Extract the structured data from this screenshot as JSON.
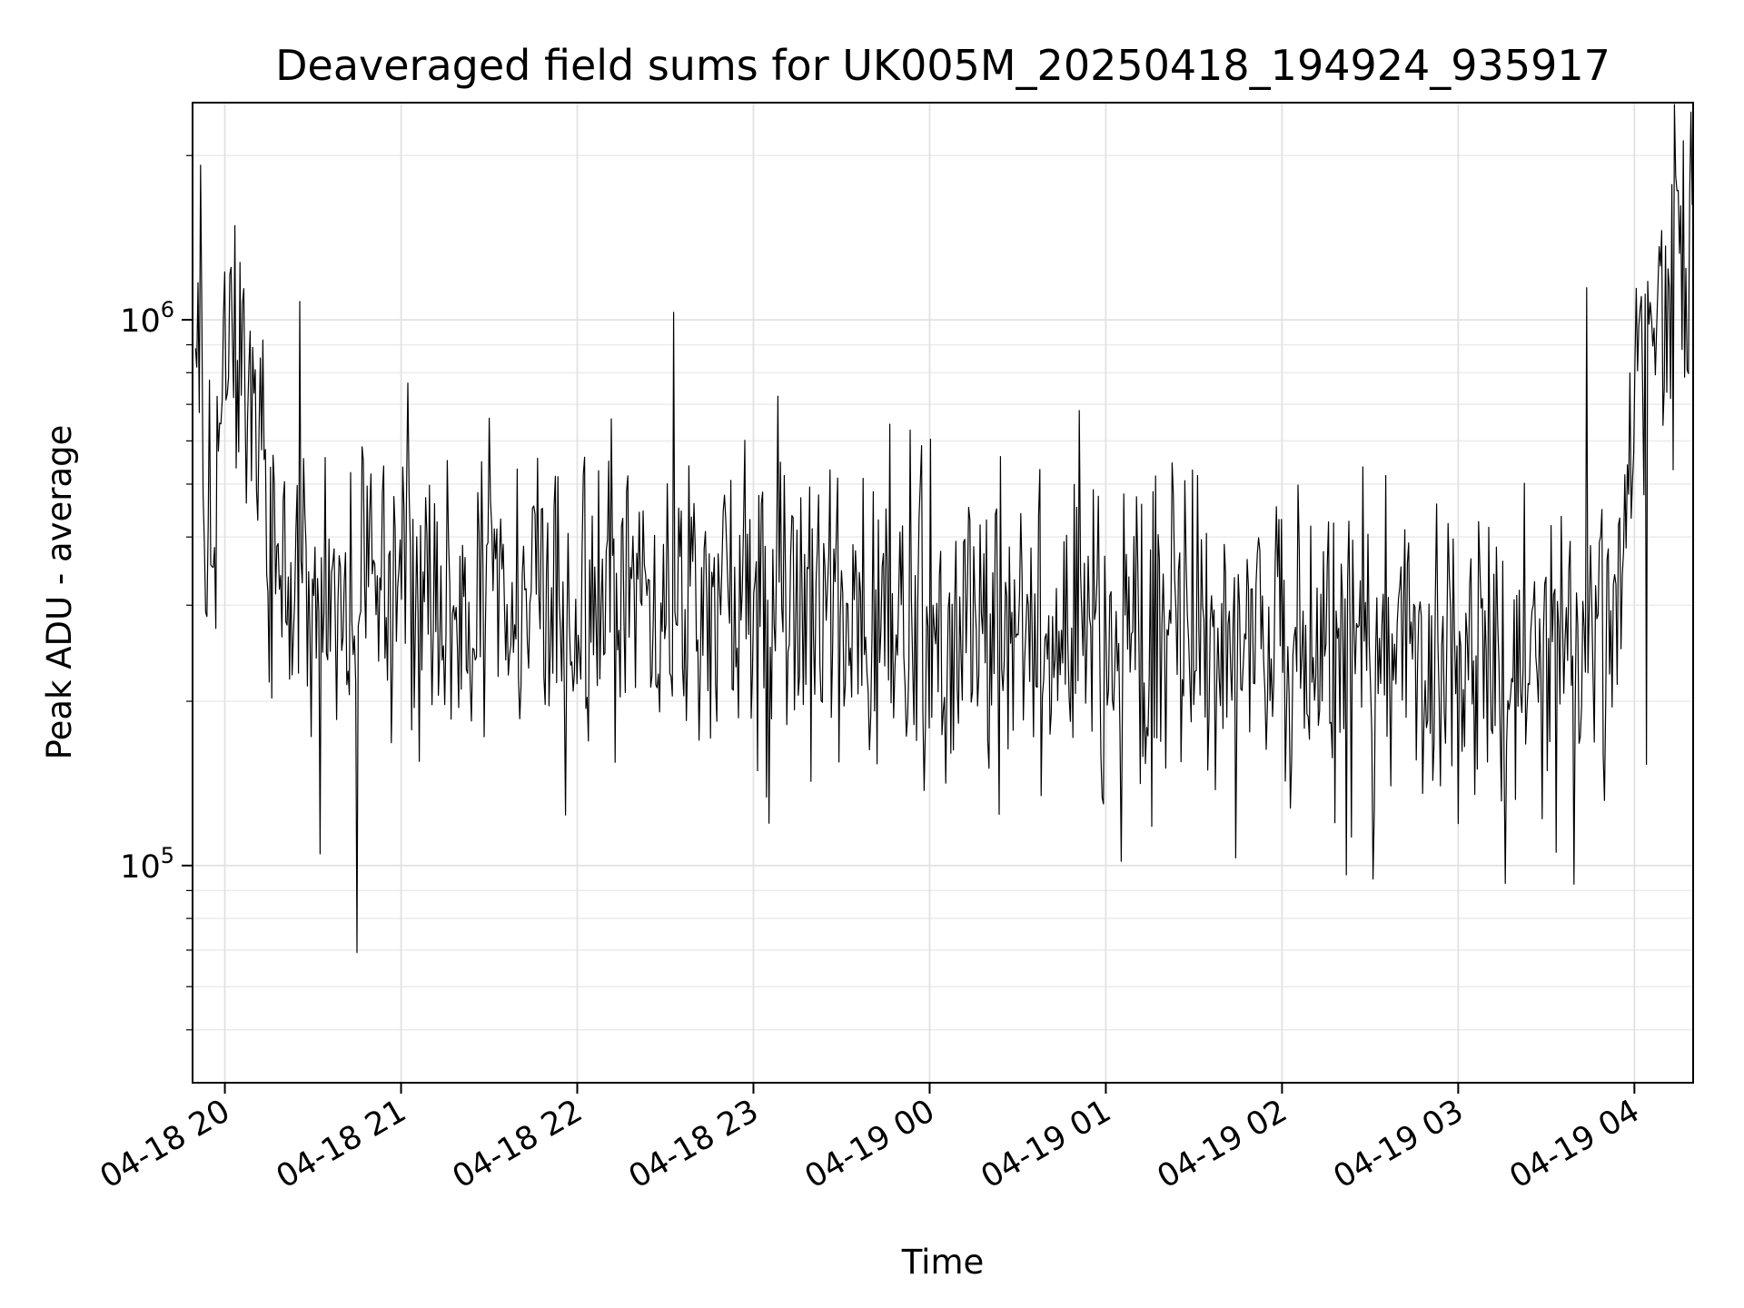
{
  "chart_data": {
    "type": "line",
    "title": "Deaveraged field sums for UK005M_20250418_194924_935917",
    "xlabel": "Time",
    "ylabel": "Peak ADU - average",
    "xlim": [
      "2025-04-18 19:49",
      "2025-04-19 04:20"
    ],
    "ylim": [
      40000,
      2500000
    ],
    "yscale": "log",
    "grid": true,
    "line_color": "#000000",
    "x_ticks": [
      {
        "label": "04-18 20",
        "value": "2025-04-18 20:00"
      },
      {
        "label": "04-18 21",
        "value": "2025-04-18 21:00"
      },
      {
        "label": "04-18 22",
        "value": "2025-04-18 22:00"
      },
      {
        "label": "04-18 23",
        "value": "2025-04-18 23:00"
      },
      {
        "label": "04-19 00",
        "value": "2025-04-19 00:00"
      },
      {
        "label": "04-19 01",
        "value": "2025-04-19 01:00"
      },
      {
        "label": "04-19 02",
        "value": "2025-04-19 02:00"
      },
      {
        "label": "04-19 03",
        "value": "2025-04-19 03:00"
      },
      {
        "label": "04-19 04",
        "value": "2025-04-19 04:00"
      }
    ],
    "y_ticks": [
      {
        "base": "10",
        "exp": "5",
        "value": 100000
      },
      {
        "base": "10",
        "exp": "6",
        "value": 1000000
      }
    ],
    "series": [
      {
        "x": [
          "2025-04-18 19:50",
          "2025-04-18 19:55",
          "2025-04-18 20:00",
          "2025-04-18 20:05",
          "2025-04-18 20:10",
          "2025-04-18 20:15",
          "2025-04-18 20:20",
          "2025-04-18 20:25",
          "2025-04-18 20:30",
          "2025-04-18 20:40",
          "2025-04-18 20:50",
          "2025-04-18 21:00",
          "2025-04-18 21:15",
          "2025-04-18 21:30",
          "2025-04-18 21:45",
          "2025-04-18 22:00",
          "2025-04-18 22:15",
          "2025-04-18 22:30",
          "2025-04-18 22:45",
          "2025-04-18 23:00",
          "2025-04-18 23:15",
          "2025-04-18 23:30",
          "2025-04-18 23:45",
          "2025-04-19 00:00",
          "2025-04-19 00:15",
          "2025-04-19 00:30",
          "2025-04-19 00:45",
          "2025-04-19 01:00",
          "2025-04-19 01:15",
          "2025-04-19 01:30",
          "2025-04-19 01:45",
          "2025-04-19 02:00",
          "2025-04-19 02:15",
          "2025-04-19 02:30",
          "2025-04-19 02:45",
          "2025-04-19 03:00",
          "2025-04-19 03:15",
          "2025-04-19 03:30",
          "2025-04-19 03:45",
          "2025-04-19 03:55",
          "2025-04-19 04:00",
          "2025-04-19 04:05",
          "2025-04-19 04:10",
          "2025-04-19 04:15",
          "2025-04-19 04:20"
        ],
        "values": [
          1000000,
          350000,
          800000,
          900000,
          650000,
          380000,
          320000,
          330000,
          300000,
          290000,
          300000,
          320000,
          330000,
          320000,
          310000,
          300000,
          310000,
          290000,
          280000,
          300000,
          290000,
          280000,
          270000,
          260000,
          270000,
          260000,
          250000,
          240000,
          250000,
          260000,
          250000,
          240000,
          250000,
          260000,
          250000,
          240000,
          250000,
          240000,
          260000,
          330000,
          800000,
          850000,
          1000000,
          1200000,
          1300000
        ]
      }
    ]
  }
}
